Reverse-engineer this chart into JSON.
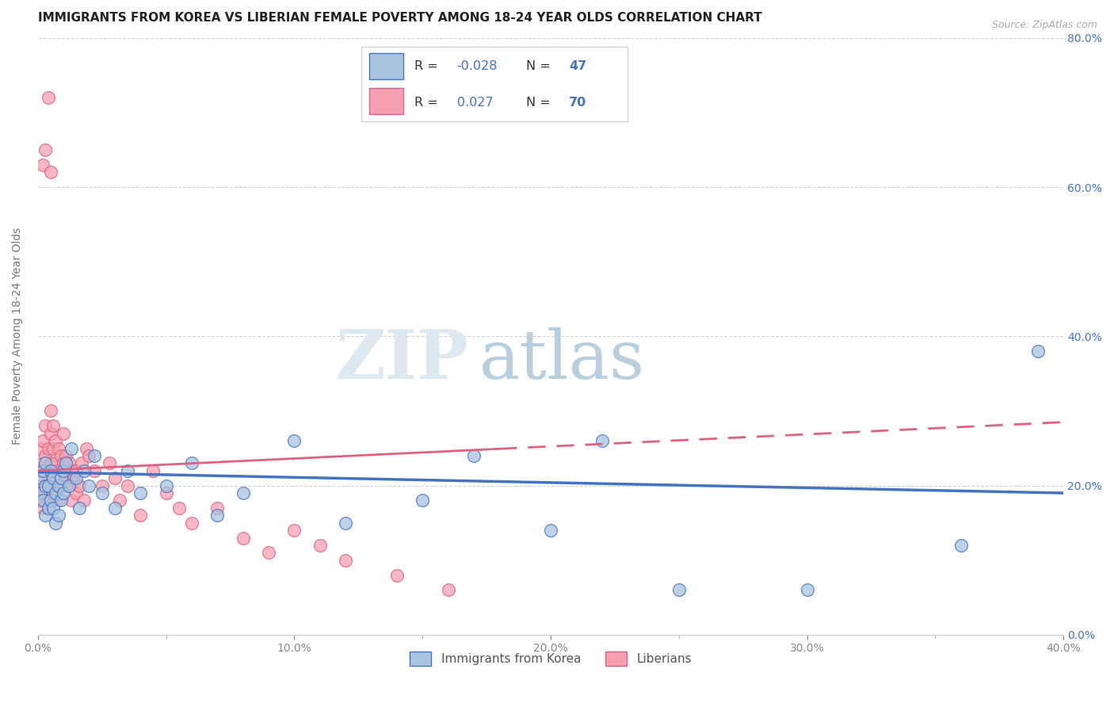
{
  "title": "IMMIGRANTS FROM KOREA VS LIBERIAN FEMALE POVERTY AMONG 18-24 YEAR OLDS CORRELATION CHART",
  "source": "Source: ZipAtlas.com",
  "ylabel": "Female Poverty Among 18-24 Year Olds",
  "xlim": [
    0.0,
    0.4
  ],
  "ylim": [
    0.0,
    0.8
  ],
  "xticks": [
    0.0,
    0.1,
    0.2,
    0.3,
    0.4
  ],
  "yticks_right": [
    0.0,
    0.2,
    0.4,
    0.6,
    0.8
  ],
  "korea_R": "-0.028",
  "korea_N": "47",
  "liberia_R": "0.027",
  "liberia_N": "70",
  "korea_color": "#a8c4e0",
  "liberia_color": "#f4a0b0",
  "korea_line_color": "#4472c4",
  "liberia_line_color": "#e06080",
  "bg_color": "#ffffff",
  "grid_color": "#cccccc",
  "watermark": "ZIPatlas",
  "watermark_color": "#c8d8e8",
  "korea_trend": [
    0.218,
    0.19
  ],
  "liberia_trend": [
    0.22,
    0.285
  ],
  "korea_x": [
    0.001,
    0.001,
    0.002,
    0.002,
    0.003,
    0.003,
    0.003,
    0.004,
    0.004,
    0.005,
    0.005,
    0.006,
    0.006,
    0.007,
    0.007,
    0.008,
    0.008,
    0.009,
    0.009,
    0.01,
    0.01,
    0.011,
    0.012,
    0.013,
    0.015,
    0.016,
    0.018,
    0.02,
    0.022,
    0.025,
    0.03,
    0.035,
    0.04,
    0.05,
    0.06,
    0.07,
    0.08,
    0.1,
    0.12,
    0.15,
    0.17,
    0.2,
    0.22,
    0.25,
    0.3,
    0.36,
    0.39
  ],
  "korea_y": [
    0.21,
    0.19,
    0.22,
    0.18,
    0.23,
    0.2,
    0.16,
    0.2,
    0.17,
    0.22,
    0.18,
    0.21,
    0.17,
    0.19,
    0.15,
    0.2,
    0.16,
    0.21,
    0.18,
    0.22,
    0.19,
    0.23,
    0.2,
    0.25,
    0.21,
    0.17,
    0.22,
    0.2,
    0.24,
    0.19,
    0.17,
    0.22,
    0.19,
    0.2,
    0.23,
    0.16,
    0.19,
    0.26,
    0.15,
    0.18,
    0.24,
    0.14,
    0.26,
    0.06,
    0.06,
    0.12,
    0.38
  ],
  "liberia_x": [
    0.001,
    0.001,
    0.001,
    0.001,
    0.002,
    0.002,
    0.002,
    0.002,
    0.003,
    0.003,
    0.003,
    0.003,
    0.004,
    0.004,
    0.004,
    0.005,
    0.005,
    0.005,
    0.006,
    0.006,
    0.006,
    0.006,
    0.007,
    0.007,
    0.007,
    0.008,
    0.008,
    0.008,
    0.009,
    0.009,
    0.01,
    0.01,
    0.01,
    0.011,
    0.011,
    0.012,
    0.012,
    0.013,
    0.013,
    0.014,
    0.015,
    0.015,
    0.016,
    0.017,
    0.018,
    0.019,
    0.02,
    0.022,
    0.025,
    0.028,
    0.03,
    0.032,
    0.035,
    0.04,
    0.045,
    0.05,
    0.055,
    0.06,
    0.07,
    0.08,
    0.09,
    0.1,
    0.11,
    0.12,
    0.14,
    0.16,
    0.002,
    0.003,
    0.004,
    0.005
  ],
  "liberia_y": [
    0.22,
    0.2,
    0.25,
    0.18,
    0.26,
    0.23,
    0.2,
    0.17,
    0.28,
    0.24,
    0.22,
    0.19,
    0.25,
    0.21,
    0.18,
    0.3,
    0.27,
    0.23,
    0.28,
    0.25,
    0.22,
    0.19,
    0.26,
    0.23,
    0.2,
    0.25,
    0.22,
    0.18,
    0.24,
    0.21,
    0.27,
    0.23,
    0.2,
    0.24,
    0.21,
    0.23,
    0.2,
    0.22,
    0.18,
    0.21,
    0.22,
    0.19,
    0.2,
    0.23,
    0.18,
    0.25,
    0.24,
    0.22,
    0.2,
    0.23,
    0.21,
    0.18,
    0.2,
    0.16,
    0.22,
    0.19,
    0.17,
    0.15,
    0.17,
    0.13,
    0.11,
    0.14,
    0.12,
    0.1,
    0.08,
    0.06,
    0.63,
    0.65,
    0.72,
    0.62
  ],
  "title_fontsize": 11,
  "axis_label_fontsize": 10,
  "tick_fontsize": 10,
  "legend_fontsize": 11
}
